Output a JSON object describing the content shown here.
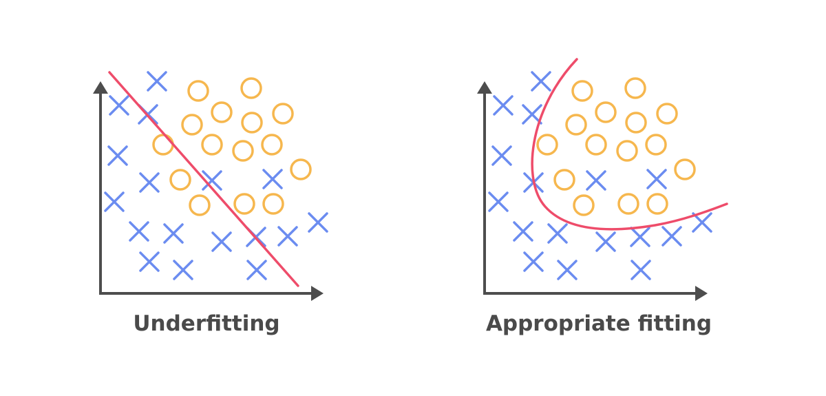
{
  "colors": {
    "axis": "#4d4d4d",
    "cross": "#6b8cf0",
    "circle": "#f6b74e",
    "boundary": "#ee4c6a",
    "title": "#4a4a4a"
  },
  "panels": [
    {
      "id": "underfitting",
      "title": "Underfitting",
      "boundary_kind": "straight-line"
    },
    {
      "id": "appropriate",
      "title": "Appropriate fitting",
      "boundary_kind": "curve"
    }
  ]
}
